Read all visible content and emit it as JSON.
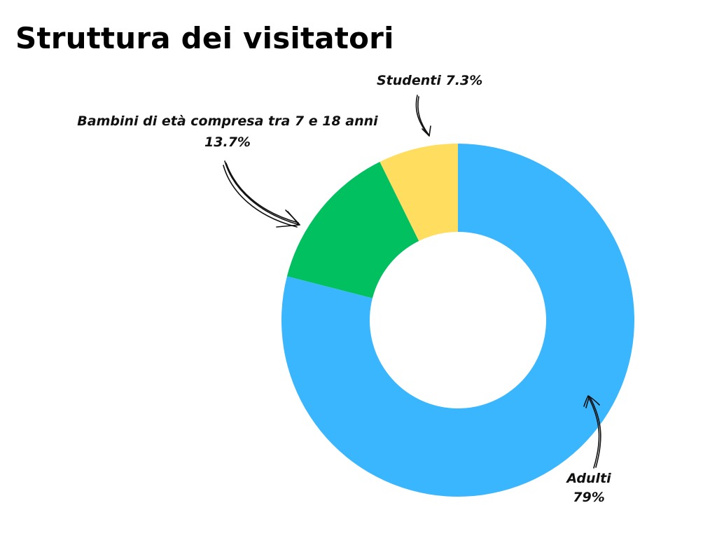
{
  "chart_data": {
    "type": "pie",
    "variant": "donut",
    "title": "Struttura dei visitatori",
    "slices": [
      {
        "name": "Adulti",
        "value": 79,
        "value_label": "79%",
        "color": "#3ab6ff"
      },
      {
        "name": "Bambini di età compresa tra 7 e 18 anni",
        "value": 13.7,
        "value_label": "13.7%",
        "color": "#00c060"
      },
      {
        "name": "Studenti",
        "value": 7.3,
        "value_label": "7.3%",
        "color": "#ffdd5e"
      }
    ],
    "start": "12 o'clock",
    "direction": "clockwise",
    "legend": "none"
  }
}
